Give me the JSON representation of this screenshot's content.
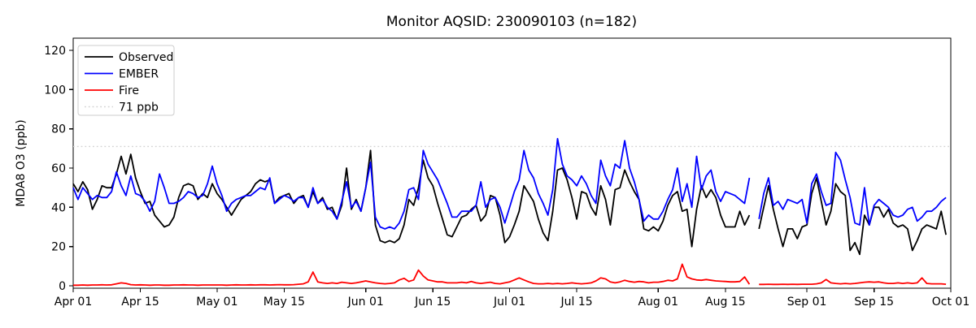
{
  "title": "Monitor AQSID: 230090103 (n=182)",
  "ylabel": "MDA8 O3 (ppb)",
  "legend": {
    "items": [
      {
        "label": "Observed",
        "color": "#000000",
        "style": "solid"
      },
      {
        "label": "EMBER",
        "color": "#0000ff",
        "style": "solid"
      },
      {
        "label": "Fire",
        "color": "#ff0000",
        "style": "solid"
      },
      {
        "label": "71 ppb",
        "color": "#d3d3d3",
        "style": "dotted"
      }
    ]
  },
  "chart_data": {
    "type": "line",
    "title": "Monitor AQSID: 230090103 (n=182)",
    "xlabel": "",
    "ylabel": "MDA8 O3 (ppb)",
    "x_unit": "days since Apr 01 (daily values, Apr 01 - Sep 30; no data Aug 21)",
    "xlim": [
      0,
      183
    ],
    "ylim": [
      0,
      126
    ],
    "grid": false,
    "legend_position": "upper left",
    "yticks": [
      0,
      20,
      40,
      60,
      80,
      100,
      120
    ],
    "xticks": [
      {
        "day": 0,
        "label": "Apr 01"
      },
      {
        "day": 14,
        "label": "Apr 15"
      },
      {
        "day": 30,
        "label": "May 01"
      },
      {
        "day": 44,
        "label": "May 15"
      },
      {
        "day": 61,
        "label": "Jun 01"
      },
      {
        "day": 75,
        "label": "Jun 15"
      },
      {
        "day": 91,
        "label": "Jul 01"
      },
      {
        "day": 105,
        "label": "Jul 15"
      },
      {
        "day": 122,
        "label": "Aug 01"
      },
      {
        "day": 136,
        "label": "Aug 15"
      },
      {
        "day": 153,
        "label": "Sep 01"
      },
      {
        "day": 167,
        "label": "Sep 15"
      },
      {
        "day": 183,
        "label": "Oct 01"
      }
    ],
    "threshold": {
      "value": 71,
      "label": "71 ppb",
      "color": "#d3d3d3",
      "style": "dotted"
    },
    "series": [
      {
        "name": "Observed",
        "color": "#000000",
        "values": [
          52,
          48,
          53,
          49,
          39,
          44,
          51,
          50,
          50,
          57,
          66,
          57,
          67,
          55,
          48,
          42,
          43,
          36,
          33,
          30,
          31,
          35,
          45,
          51,
          52,
          51,
          44,
          47,
          45,
          52,
          47,
          44,
          40,
          36,
          40,
          44,
          46,
          48,
          52,
          54,
          53,
          54,
          42,
          45,
          46,
          47,
          42,
          45,
          46,
          40,
          48,
          42,
          45,
          39,
          40,
          34,
          41,
          60,
          39,
          44,
          38,
          50,
          69,
          31,
          23,
          22,
          23,
          22,
          24,
          31,
          44,
          41,
          50,
          64,
          55,
          51,
          42,
          34,
          26,
          25,
          30,
          35,
          36,
          39,
          41,
          33,
          36,
          46,
          45,
          36,
          22,
          25,
          31,
          38,
          51,
          47,
          43,
          34,
          27,
          23,
          38,
          59,
          60,
          54,
          45,
          34,
          48,
          47,
          40,
          36,
          51,
          44,
          31,
          49,
          50,
          59,
          53,
          48,
          44,
          29,
          28,
          30,
          28,
          33,
          41,
          46,
          48,
          38,
          39,
          20,
          39,
          51,
          45,
          49,
          45,
          36,
          30,
          30,
          30,
          38,
          31,
          36,
          null,
          29,
          40,
          51,
          39,
          29,
          20,
          29,
          29,
          24,
          30,
          31,
          47,
          55,
          43,
          31,
          38,
          52,
          48,
          46,
          18,
          22,
          16,
          36,
          31,
          40,
          40,
          35,
          39,
          32,
          30,
          31,
          29,
          18,
          23,
          29,
          31,
          30,
          29,
          38,
          26
        ]
      },
      {
        "name": "EMBER",
        "color": "#0000ff",
        "values": [
          50,
          44,
          50,
          47,
          44,
          46,
          45,
          45,
          48,
          58,
          51,
          46,
          56,
          47,
          46,
          43,
          38,
          43,
          57,
          50,
          42,
          42,
          43,
          45,
          48,
          47,
          45,
          46,
          52,
          61,
          52,
          46,
          38,
          42,
          44,
          45,
          46,
          46,
          48,
          50,
          49,
          55,
          42,
          44,
          46,
          45,
          43,
          45,
          45,
          40,
          50,
          42,
          44,
          40,
          38,
          34,
          43,
          53,
          40,
          43,
          38,
          50,
          63,
          35,
          30,
          29,
          30,
          29,
          32,
          38,
          49,
          50,
          44,
          69,
          62,
          58,
          54,
          48,
          42,
          35,
          35,
          38,
          38,
          38,
          41,
          53,
          40,
          44,
          45,
          40,
          32,
          40,
          48,
          54,
          69,
          59,
          55,
          47,
          42,
          36,
          49,
          75,
          62,
          56,
          54,
          51,
          56,
          52,
          46,
          42,
          64,
          56,
          51,
          62,
          60,
          74,
          60,
          53,
          44,
          33,
          36,
          34,
          34,
          38,
          44,
          49,
          60,
          43,
          52,
          40,
          66,
          49,
          56,
          59,
          48,
          43,
          48,
          47,
          46,
          44,
          42,
          55,
          null,
          34,
          47,
          55,
          41,
          43,
          39,
          44,
          43,
          42,
          44,
          32,
          52,
          57,
          48,
          41,
          42,
          68,
          64,
          54,
          45,
          32,
          31,
          50,
          31,
          41,
          44,
          42,
          40,
          36,
          35,
          36,
          39,
          40,
          33,
          35,
          38,
          38,
          40,
          43,
          45
        ]
      },
      {
        "name": "Fire",
        "color": "#ff0000",
        "values": [
          0.3,
          0.3,
          0.4,
          0.3,
          0.4,
          0.4,
          0.5,
          0.4,
          0.5,
          1.0,
          1.5,
          1.2,
          0.6,
          0.4,
          0.5,
          0.4,
          0.3,
          0.4,
          0.4,
          0.3,
          0.3,
          0.4,
          0.4,
          0.5,
          0.4,
          0.4,
          0.3,
          0.4,
          0.4,
          0.4,
          0.4,
          0.4,
          0.3,
          0.4,
          0.5,
          0.4,
          0.4,
          0.5,
          0.4,
          0.5,
          0.5,
          0.4,
          0.5,
          0.6,
          0.5,
          0.5,
          0.6,
          0.8,
          1.0,
          2.0,
          7.0,
          2.0,
          1.5,
          1.2,
          1.5,
          1.2,
          1.8,
          1.5,
          1.2,
          1.5,
          2.0,
          2.5,
          2.0,
          1.5,
          1.2,
          1.0,
          1.2,
          1.5,
          3.0,
          3.8,
          2.2,
          3.0,
          8.0,
          5.0,
          3.0,
          2.5,
          2.0,
          2.0,
          1.5,
          1.5,
          1.5,
          1.8,
          1.5,
          2.2,
          1.5,
          1.2,
          1.5,
          1.8,
          1.2,
          1.0,
          1.5,
          2.0,
          3.0,
          4.0,
          3.0,
          2.0,
          1.2,
          1.0,
          1.0,
          1.2,
          1.0,
          1.2,
          1.0,
          1.2,
          1.5,
          1.2,
          1.0,
          1.2,
          1.5,
          2.5,
          4.0,
          3.5,
          2.0,
          1.5,
          2.0,
          2.8,
          2.2,
          1.8,
          2.2,
          2.0,
          1.5,
          1.8,
          1.8,
          2.2,
          2.8,
          2.5,
          3.5,
          11.0,
          4.5,
          3.5,
          3.0,
          2.8,
          3.2,
          2.8,
          2.5,
          2.3,
          2.2,
          2.0,
          2.0,
          2.2,
          4.5,
          0.8,
          null,
          0.7,
          0.7,
          0.8,
          0.7,
          0.7,
          0.8,
          0.7,
          0.8,
          0.7,
          0.8,
          0.8,
          0.8,
          1.0,
          1.5,
          3.2,
          1.5,
          1.2,
          1.0,
          1.2,
          1.0,
          1.2,
          1.5,
          1.8,
          2.0,
          1.8,
          2.0,
          1.5,
          1.2,
          1.2,
          1.5,
          1.2,
          1.5,
          1.2,
          1.5,
          4.0,
          1.2,
          1.0,
          1.0,
          1.0,
          0.8
        ]
      }
    ]
  }
}
